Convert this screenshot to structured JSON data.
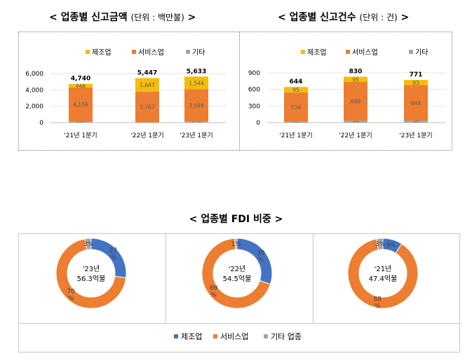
{
  "titles": {
    "amount_main": "< 업종별 신고금액",
    "amount_unit": "(단위 : 백만불)",
    "amount_close": ">",
    "count_main": "< 업종별 신고건수",
    "count_unit": "(단위 : 건)",
    "count_close": ">",
    "ratio": "< 업종별 FDI 비중 >"
  },
  "colors": {
    "manufacturing": "#f2bd0b",
    "services": "#ed7d31",
    "other": "#a5a5a5",
    "donut_manufacturing": "#4472c4",
    "donut_services": "#ed7d31",
    "donut_other": "#a5a5a5"
  },
  "chart_data": [
    {
      "type": "bar",
      "stacked": true,
      "title": "업종별 신고금액 (단위 : 백만불)",
      "categories": [
        "'21년 1분기",
        "'22년 1분기",
        "'23년 1분기"
      ],
      "series": [
        {
          "name": "기타",
          "values": [
            138,
            33,
            141
          ],
          "labels": [
            "138",
            "33",
            "141"
          ]
        },
        {
          "name": "서비스업",
          "values": [
            4156,
            3767,
            3948
          ],
          "labels": [
            "4,156",
            "3,767",
            "3,948"
          ]
        },
        {
          "name": "제조업",
          "values": [
            446,
            1647,
            1544
          ],
          "labels": [
            "446",
            "1,647",
            "1,544"
          ]
        }
      ],
      "legend": [
        "제조업",
        "서비스업",
        "기타"
      ],
      "totals": [
        "4,740",
        "5,447",
        "5,633"
      ],
      "yticks": [
        "6,000",
        "4,000",
        "2,000",
        "0"
      ],
      "ylim": [
        0,
        6000
      ],
      "grid": true,
      "legend_position": "top"
    },
    {
      "type": "bar",
      "stacked": true,
      "title": "업종별 신고건수 (단위 : 건)",
      "categories": [
        "'21년 1분기",
        "'22년 1분기",
        "'23년 1분기"
      ],
      "series": [
        {
          "name": "기타",
          "values": [
            15,
            36,
            34
          ],
          "labels": [
            "15",
            "36",
            "34"
          ]
        },
        {
          "name": "서비스업",
          "values": [
            534,
            699,
            644
          ],
          "labels": [
            "534",
            "699",
            "644"
          ]
        },
        {
          "name": "제조업",
          "values": [
            95,
            95,
            93
          ],
          "labels": [
            "95",
            "95",
            "93"
          ]
        }
      ],
      "legend": [
        "제조업",
        "서비스업",
        "기타"
      ],
      "totals": [
        "644",
        "830",
        "771"
      ],
      "yticks": [
        "900",
        "600",
        "300",
        "0"
      ],
      "ylim": [
        0,
        900
      ],
      "grid": true,
      "legend_position": "top"
    },
    {
      "type": "pie",
      "donut": true,
      "title": "업종별 FDI 비중",
      "charts": [
        {
          "center_line1": "'23년",
          "center_line2": "56.3억불",
          "values": [
            27,
            70,
            3
          ],
          "labels": [
            "27\n%",
            "70\n%",
            "3%"
          ]
        },
        {
          "center_line1": "'22년",
          "center_line2": "54.5억불",
          "values": [
            30,
            69,
            1
          ],
          "labels": [
            "30\n%",
            "69\n%",
            "1%"
          ]
        },
        {
          "center_line1": "'21년",
          "center_line2": "47.4억불",
          "values": [
            9,
            88,
            3
          ],
          "labels": [
            "9%",
            "88\n%",
            "3%"
          ]
        }
      ],
      "legend": [
        "제조업",
        "서비스업",
        "기타 업종"
      ],
      "legend_position": "bottom"
    }
  ]
}
